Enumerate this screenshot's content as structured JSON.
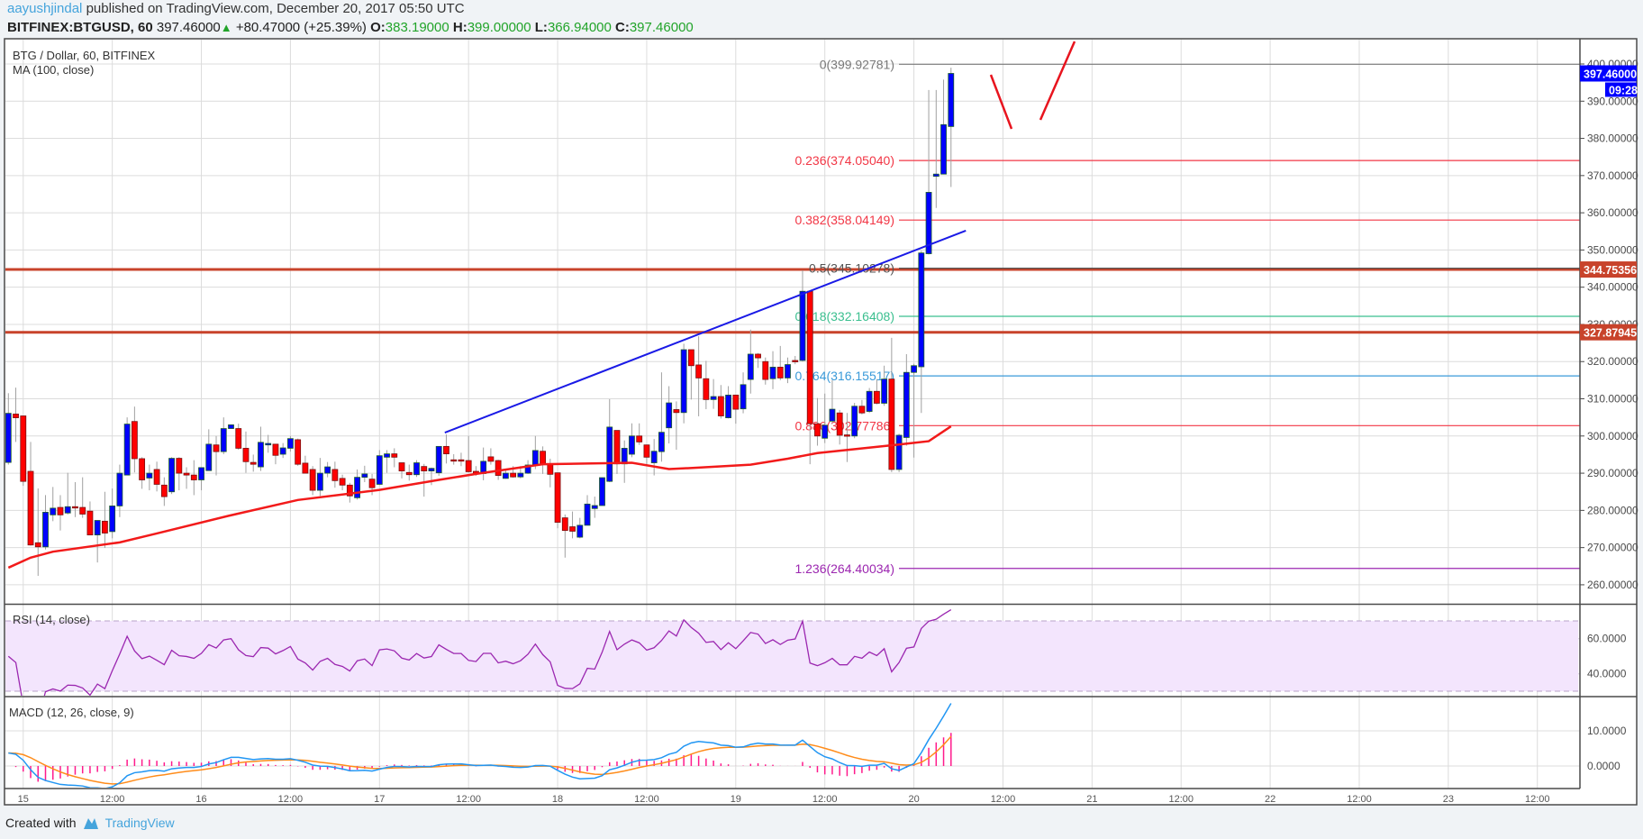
{
  "header": {
    "author": "aayushjindal",
    "published": "published on TradingView.com, December 20, 2017 05:50 UTC",
    "symbol": "BITFINEX:BTGUSD, 60",
    "last": "397.46000",
    "change": "+80.47000 (+25.39%)",
    "o_label": "O:",
    "o": "383.19000",
    "h_label": "H:",
    "h": "399.00000",
    "l_label": "L:",
    "l": "366.94000",
    "c_label": "C:",
    "c": "397.46000"
  },
  "legend": {
    "title": "BTG / Dollar, 60, BITFINEX",
    "ma": "MA (100, close)",
    "rsi": "RSI (14, close)",
    "macd": "MACD (12, 26, close, 9)"
  },
  "footer": {
    "created": "Created with",
    "brand": "TradingView"
  },
  "colors": {
    "up": "#0000ff",
    "down": "#ff0000",
    "ma": "#f21a1a",
    "trendline": "#1a1ae6",
    "hline": "#c8432b",
    "rsi": "#9b27b0",
    "rsi_bg": "#f3e5fd",
    "macd": "#2196f3",
    "signal": "#ff8c1a",
    "hist": "#ff1a8c",
    "brand": "#45a4dc"
  },
  "chart_data": {
    "type": "candlestick",
    "title": "BTG / Dollar, 60, BITFINEX",
    "interval_minutes": 60,
    "price_axis": {
      "min": 255,
      "max": 403,
      "ticks": [
        "260.00000",
        "270.00000",
        "280.00000",
        "290.00000",
        "300.00000",
        "310.00000",
        "320.00000",
        "330.00000",
        "340.00000",
        "350.00000",
        "360.00000",
        "370.00000",
        "380.00000",
        "390.00000",
        "400.00000"
      ]
    },
    "time_labels": [
      "15",
      "12:00",
      "16",
      "12:00",
      "17",
      "12:00",
      "18",
      "12:00",
      "19",
      "12:00",
      "20",
      "12:00",
      "21",
      "12:00",
      "22",
      "12:00",
      "23",
      "12:00"
    ],
    "first_candle": "Dec 14 22:00",
    "candles_ohlc": [
      [
        292.9,
        311.5,
        292.3,
        306.1
      ],
      [
        305.9,
        313,
        298.4,
        304.9
      ],
      [
        305.4,
        305.4,
        286.6,
        287.8
      ],
      [
        290.5,
        298.4,
        270.5,
        270.7
      ],
      [
        271.3,
        285.9,
        262.4,
        270.2
      ],
      [
        270.2,
        284.1,
        269.5,
        279.5
      ],
      [
        278.8,
        286.3,
        277.1,
        280.6
      ],
      [
        280.8,
        284.1,
        274.6,
        278.8
      ],
      [
        279.3,
        290.1,
        278.9,
        281
      ],
      [
        281,
        287.6,
        278.2,
        280.8
      ],
      [
        280.8,
        288.9,
        278,
        279
      ],
      [
        279.8,
        282.4,
        273.4,
        273.4
      ],
      [
        273.4,
        277.3,
        266,
        277.3
      ],
      [
        277.1,
        285,
        269.9,
        273.9
      ],
      [
        274.3,
        285.9,
        272.5,
        281.2
      ],
      [
        281.2,
        292.3,
        278.2,
        290
      ],
      [
        289.5,
        305,
        289.5,
        303.2
      ],
      [
        303.9,
        307.9,
        290.2,
        293.9
      ],
      [
        293.9,
        294.3,
        285.8,
        288.2
      ],
      [
        288.7,
        292.3,
        285.4,
        290
      ],
      [
        291,
        293.1,
        285.1,
        287
      ],
      [
        286.8,
        288.9,
        281.2,
        283.7
      ],
      [
        285,
        294.3,
        284.4,
        294
      ],
      [
        294,
        294.3,
        285.4,
        290
      ],
      [
        290,
        291.6,
        285.8,
        289.5
      ],
      [
        289.5,
        293.5,
        284.1,
        288.2
      ],
      [
        288.2,
        291.5,
        285.4,
        291.5
      ],
      [
        290.7,
        301.8,
        290.7,
        297.8
      ],
      [
        297.6,
        300,
        289.4,
        295.8
      ],
      [
        295.8,
        305,
        295.1,
        302
      ],
      [
        302,
        303,
        302,
        303
      ],
      [
        302,
        303.3,
        296.3,
        296.7
      ],
      [
        296.7,
        301.2,
        290.1,
        293.1
      ],
      [
        292.9,
        295,
        290.4,
        292.4
      ],
      [
        291.7,
        302.5,
        290.6,
        298.3
      ],
      [
        297.6,
        300.3,
        295.5,
        298
      ],
      [
        297.8,
        297.8,
        292.4,
        294.8
      ],
      [
        295.1,
        298.1,
        294.1,
        296.8
      ],
      [
        296.7,
        300,
        295.8,
        299.3
      ],
      [
        299,
        299.3,
        292,
        292.4
      ],
      [
        292.7,
        294.7,
        290,
        290
      ],
      [
        291,
        291.9,
        284.1,
        285.4
      ],
      [
        285.4,
        294.1,
        283.9,
        290
      ],
      [
        290,
        293,
        288.9,
        291.7
      ],
      [
        291,
        293.1,
        286.1,
        288
      ],
      [
        288.6,
        289.6,
        285.4,
        286.8
      ],
      [
        286.8,
        287.4,
        282.1,
        283.9
      ],
      [
        283.4,
        291,
        282.9,
        288.9
      ],
      [
        288.9,
        292,
        287.6,
        289.8
      ],
      [
        288.4,
        289.8,
        284.1,
        286.1
      ],
      [
        287,
        296.2,
        286.8,
        294.7
      ],
      [
        294.3,
        296.2,
        290.1,
        295.2
      ],
      [
        295.2,
        296.7,
        291.6,
        294.3
      ],
      [
        292.8,
        292.8,
        288.6,
        290.6
      ],
      [
        290.2,
        292.3,
        288,
        289.6
      ],
      [
        289.6,
        293.5,
        289,
        292.8
      ],
      [
        291.8,
        292.5,
        283.7,
        290.6
      ],
      [
        290.6,
        291.5,
        286.8,
        291.3
      ],
      [
        290.1,
        296.6,
        289.3,
        297.2
      ],
      [
        297.2,
        300.4,
        292.6,
        295.2
      ],
      [
        293.6,
        295.1,
        292.3,
        293.4
      ],
      [
        293.6,
        295.5,
        291.9,
        293.4
      ],
      [
        293.4,
        300,
        290.2,
        290.4
      ],
      [
        290.5,
        291.9,
        289.3,
        289.9
      ],
      [
        289.9,
        296.9,
        288.1,
        293.2
      ],
      [
        294.4,
        296.7,
        292.3,
        293.2
      ],
      [
        293.4,
        293.6,
        288.2,
        289.4
      ],
      [
        288.6,
        290.9,
        288.5,
        290
      ],
      [
        290,
        291.9,
        288.8,
        289
      ],
      [
        289,
        291.9,
        288.6,
        290
      ],
      [
        290,
        293.5,
        289.8,
        292.2
      ],
      [
        292.2,
        300,
        291.1,
        296.1
      ],
      [
        295.9,
        297.2,
        289.8,
        292.5
      ],
      [
        292.4,
        293.9,
        286.2,
        289.7
      ],
      [
        290.1,
        290.1,
        275.2,
        276.8
      ],
      [
        278,
        278.9,
        267.3,
        274.6
      ],
      [
        275.6,
        279.7,
        272.5,
        274.4
      ],
      [
        272.8,
        278,
        272.5,
        276
      ],
      [
        276,
        284.1,
        276,
        281.7
      ],
      [
        280.5,
        283.7,
        278,
        281.3
      ],
      [
        281.3,
        288.8,
        281.3,
        288.8
      ],
      [
        287.8,
        309.9,
        287.6,
        302.4
      ],
      [
        301.5,
        301.5,
        289.8,
        292.5
      ],
      [
        292.5,
        298.8,
        287.4,
        296.7
      ],
      [
        295.1,
        303.4,
        294.3,
        300
      ],
      [
        300,
        303.4,
        297.6,
        298.4
      ],
      [
        297.6,
        297.6,
        292.3,
        294.3
      ],
      [
        292.8,
        299.2,
        289.4,
        295.9
      ],
      [
        295.8,
        317.1,
        293.1,
        301
      ],
      [
        302.2,
        313.4,
        298,
        308.9
      ],
      [
        307.1,
        309.3,
        296.3,
        306.3
      ],
      [
        306.3,
        324.8,
        303.4,
        323.2
      ],
      [
        323.2,
        323.2,
        309.8,
        318.9
      ],
      [
        319.1,
        326.8,
        305.3,
        315.6
      ],
      [
        315.4,
        320.2,
        307.2,
        309.8
      ],
      [
        309.8,
        315.3,
        307.3,
        310.6
      ],
      [
        310.6,
        313.7,
        304.7,
        305.4
      ],
      [
        304.9,
        313.4,
        304.7,
        311
      ],
      [
        311,
        311,
        303.3,
        307.2
      ],
      [
        307.3,
        317.1,
        306.1,
        313.8
      ],
      [
        315.2,
        328.6,
        311.4,
        322
      ],
      [
        322,
        322.3,
        318.3,
        321
      ],
      [
        320,
        321.1,
        313.8,
        315.2
      ],
      [
        315.4,
        322.8,
        312.6,
        318.5
      ],
      [
        318.5,
        324.2,
        315,
        315.6
      ],
      [
        315.6,
        321.1,
        314.2,
        319.2
      ],
      [
        320.3,
        321.5,
        319.3,
        320.2
      ],
      [
        320.3,
        344.5,
        320,
        338.9
      ],
      [
        338.9,
        338.9,
        292.4,
        303.3
      ],
      [
        303.3,
        310.2,
        297.4,
        300
      ],
      [
        299.4,
        311.4,
        298.1,
        302.9
      ],
      [
        304,
        315,
        303.4,
        307.2
      ],
      [
        306.2,
        307,
        297.7,
        300.2
      ],
      [
        300.3,
        306.2,
        293,
        300.2
      ],
      [
        300,
        308.9,
        299.4,
        308
      ],
      [
        308,
        309.7,
        305.8,
        306.2
      ],
      [
        306.6,
        312.9,
        306.2,
        312
      ],
      [
        312,
        315.3,
        308.5,
        308.8
      ],
      [
        308.8,
        318.9,
        308.1,
        315.3
      ],
      [
        315.3,
        326.4,
        290.3,
        291
      ],
      [
        291,
        300.6,
        290.3,
        300.2
      ],
      [
        299.6,
        322,
        297.4,
        317.1
      ],
      [
        317.1,
        319.4,
        294.2,
        318.9
      ],
      [
        318.6,
        349.8,
        306.2,
        349.2
      ],
      [
        349,
        393,
        348.8,
        365.5
      ],
      [
        369.8,
        393,
        361.3,
        370.4
      ],
      [
        370.4,
        395.8,
        370.4,
        383.7
      ],
      [
        383.19,
        399,
        366.94,
        397.46
      ]
    ],
    "ma_100": [
      [
        0,
        264.6
      ],
      [
        3,
        267.3
      ],
      [
        6,
        268.9
      ],
      [
        15,
        271.4
      ],
      [
        20,
        273.8
      ],
      [
        30,
        278.7
      ],
      [
        39,
        282.8
      ],
      [
        50,
        285.5
      ],
      [
        58,
        288.2
      ],
      [
        63,
        289.8
      ],
      [
        72,
        292.4
      ],
      [
        84,
        292.8
      ],
      [
        89,
        291.1
      ],
      [
        93,
        291.5
      ],
      [
        100,
        292.3
      ],
      [
        105,
        293.9
      ],
      [
        109,
        295.4
      ],
      [
        120,
        297.7
      ],
      [
        124,
        298.6
      ],
      [
        127,
        302.6
      ]
    ],
    "fib_levels": [
      {
        "label": "0(399.92781)",
        "price": 399.92781,
        "color": "#787878"
      },
      {
        "label": "0.236(374.05040)",
        "price": 374.0504,
        "color": "#f23645"
      },
      {
        "label": "0.382(358.04149)",
        "price": 358.04149,
        "color": "#f23645"
      },
      {
        "label": "0.5(345.10278)",
        "price": 345.10278,
        "color": "#555555"
      },
      {
        "label": "0.618(332.16408)",
        "price": 332.16408,
        "color": "#3bbf8f"
      },
      {
        "label": "0.764(316.15517)",
        "price": 316.15517,
        "color": "#3a9ad9"
      },
      {
        "label": "0.886(302.77786)",
        "price": 302.77786,
        "color": "#f23645"
      },
      {
        "label": "1.236(264.40034)",
        "price": 264.40034,
        "color": "#9c27b0"
      }
    ],
    "horizontal_lines": [
      {
        "price": 344.75356,
        "label": "344.75356"
      },
      {
        "price": 327.87945,
        "label": "327.87945"
      }
    ],
    "trendline": {
      "from": [
        58.8,
        300.9
      ],
      "to": [
        129,
        355.2
      ]
    },
    "last_price_label": "397.46000",
    "countdown": "09:28",
    "rsi": {
      "period": 14,
      "band": [
        30,
        70
      ],
      "ticks": [
        {
          "v": 40,
          "label": "40.0000"
        },
        {
          "v": 60,
          "label": "60.0000"
        }
      ]
    },
    "macd": {
      "fast": 12,
      "slow": 26,
      "signal": 9,
      "ticks": [
        {
          "v": 0,
          "label": "0.0000"
        },
        {
          "v": 10,
          "label": "10.0000"
        }
      ]
    }
  }
}
